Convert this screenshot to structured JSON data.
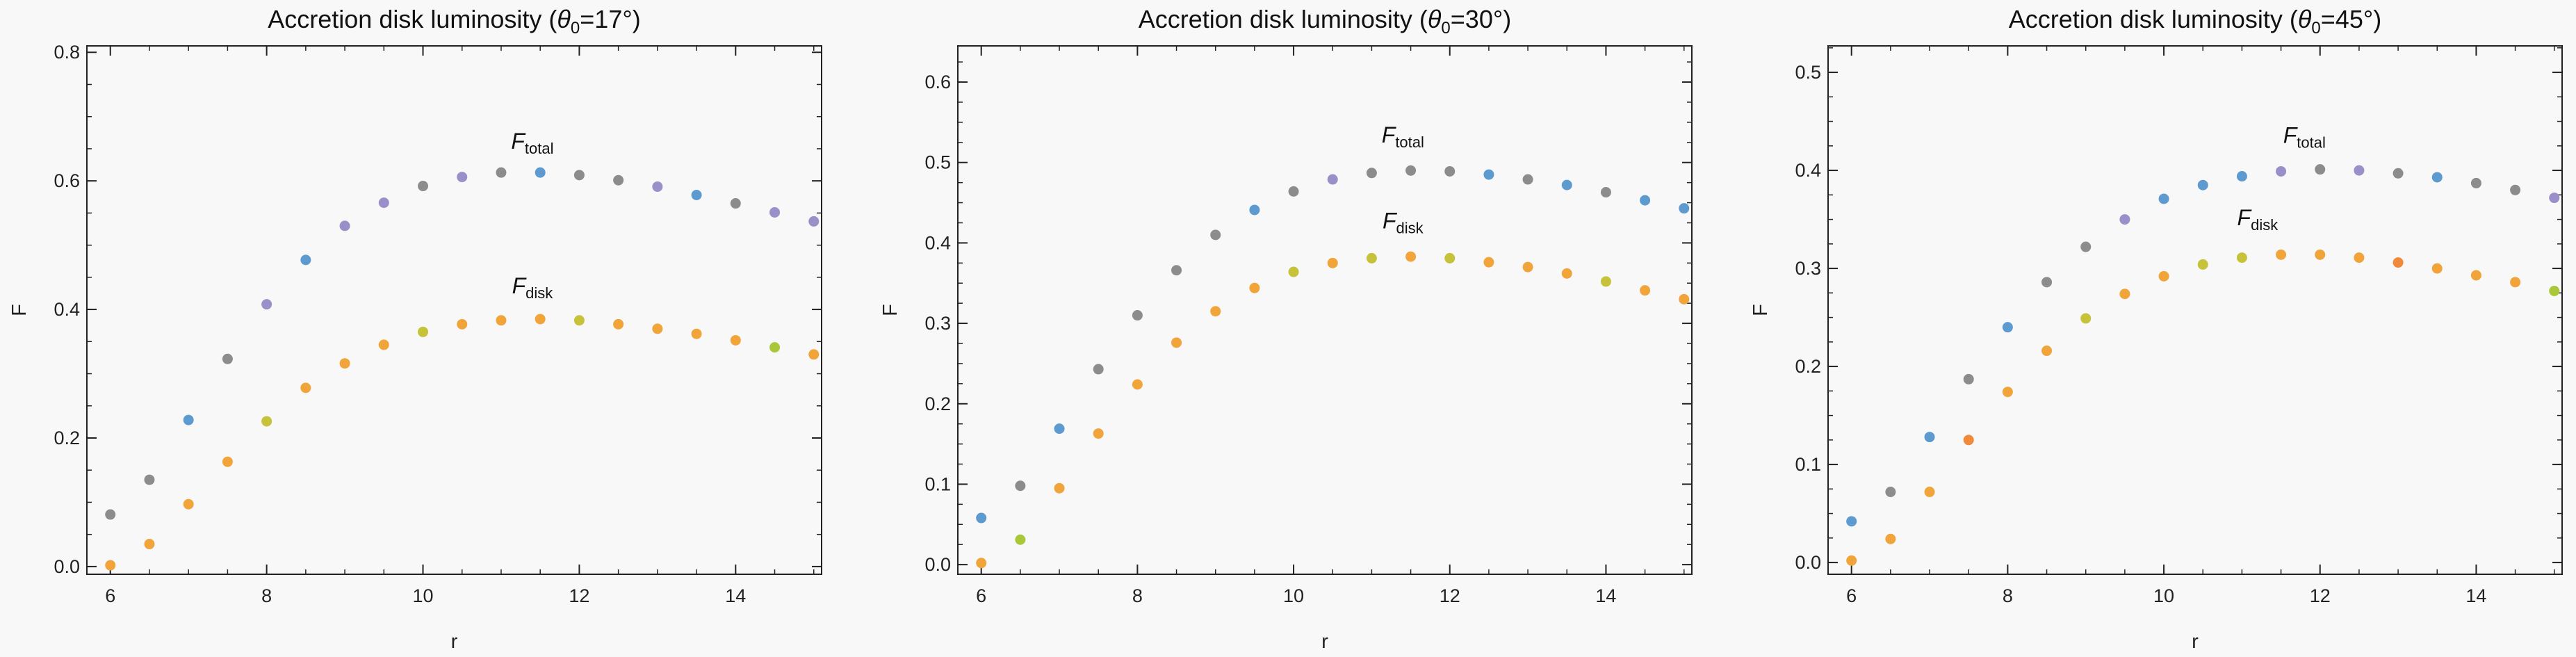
{
  "figure": {
    "background": "#f8f8f8",
    "axis_color": "#222222"
  },
  "chart_data": [
    {
      "type": "scatter",
      "title_prefix": "Accretion disk luminosity  (",
      "title_theta": "θ",
      "title_sub": "0",
      "title_suffix": "=17°)",
      "xlabel": "r",
      "ylabel": "F",
      "xlim": [
        5.7,
        15.1
      ],
      "ylim": [
        -0.012,
        0.81
      ],
      "xticks": [
        6,
        8,
        10,
        12,
        14
      ],
      "xtick_labels": [
        "6",
        "8",
        "10",
        "12",
        "14"
      ],
      "yticks": [
        0.0,
        0.2,
        0.4,
        0.6,
        0.8
      ],
      "ytick_labels": [
        "0.0",
        "0.2",
        "0.4",
        "0.6",
        "0.8"
      ],
      "minor_x_step": 0.5,
      "minor_y_step": 0.05,
      "grid": false,
      "annotations": [
        {
          "main": "F",
          "sub": "total",
          "x": 11.4,
          "y": 0.65
        },
        {
          "main": "F",
          "sub": "disk",
          "x": 11.4,
          "y": 0.425
        }
      ],
      "series": [
        {
          "x": [
            6,
            6.5,
            7,
            7.5,
            8,
            8.5,
            9,
            9.5,
            10,
            10.5,
            11,
            11.5,
            12,
            12.5,
            13,
            13.5,
            14,
            14.5,
            15
          ],
          "values": [
            0.081,
            0.135,
            0.228,
            0.323,
            0.408,
            0.477,
            0.53,
            0.566,
            0.592,
            0.606,
            0.613,
            0.613,
            0.609,
            0.601,
            0.591,
            0.578,
            0.565,
            0.551,
            0.537
          ],
          "colors": [
            "#8c8c8c",
            "#8c8c8c",
            "#5d9ad0",
            "#8c8c8c",
            "#9a8fc8",
            "#5d9ad0",
            "#9a8fc8",
            "#9a8fc8",
            "#8c8c8c",
            "#9a8fc8",
            "#8c8c8c",
            "#5d9ad0",
            "#8c8c8c",
            "#8c8c8c",
            "#9a8fc8",
            "#5d9ad0",
            "#8c8c8c",
            "#9a8fc8",
            "#9a8fc8"
          ]
        },
        {
          "x": [
            6,
            6.5,
            7,
            7.5,
            8,
            8.5,
            9,
            9.5,
            10,
            10.5,
            11,
            11.5,
            12,
            12.5,
            13,
            13.5,
            14,
            14.5,
            15
          ],
          "values": [
            0.002,
            0.035,
            0.097,
            0.163,
            0.226,
            0.278,
            0.316,
            0.345,
            0.365,
            0.377,
            0.383,
            0.385,
            0.383,
            0.377,
            0.37,
            0.362,
            0.352,
            0.341,
            0.33
          ],
          "colors": [
            "#f0a43a",
            "#f0a43a",
            "#f0a43a",
            "#f0a43a",
            "#c6c23a",
            "#f0a43a",
            "#f0a43a",
            "#f0a43a",
            "#c6c23a",
            "#f0a43a",
            "#f0a43a",
            "#f0a43a",
            "#c6c23a",
            "#f0a43a",
            "#f0a43a",
            "#f0a43a",
            "#f0a43a",
            "#a8c83a",
            "#f0a43a"
          ]
        }
      ]
    },
    {
      "type": "scatter",
      "title_prefix": "Accretion disk luminosity  (",
      "title_theta": "θ",
      "title_sub": "0",
      "title_suffix": "=30°)",
      "xlabel": "r",
      "ylabel": "F",
      "xlim": [
        5.7,
        15.1
      ],
      "ylim": [
        -0.012,
        0.645
      ],
      "xticks": [
        6,
        8,
        10,
        12,
        14
      ],
      "xtick_labels": [
        "6",
        "8",
        "10",
        "12",
        "14"
      ],
      "yticks": [
        0.0,
        0.1,
        0.2,
        0.3,
        0.4,
        0.5,
        0.6
      ],
      "ytick_labels": [
        "0.0",
        "0.1",
        "0.2",
        "0.3",
        "0.4",
        "0.5",
        "0.6"
      ],
      "minor_x_step": 0.5,
      "minor_y_step": 0.025,
      "grid": false,
      "annotations": [
        {
          "main": "F",
          "sub": "total",
          "x": 11.4,
          "y": 0.525
        },
        {
          "main": "F",
          "sub": "disk",
          "x": 11.4,
          "y": 0.418
        }
      ],
      "series": [
        {
          "x": [
            6,
            6.5,
            7,
            7.5,
            8,
            8.5,
            9,
            9.5,
            10,
            10.5,
            11,
            11.5,
            12,
            12.5,
            13,
            13.5,
            14,
            14.5,
            15
          ],
          "values": [
            0.058,
            0.098,
            0.169,
            0.243,
            0.31,
            0.366,
            0.41,
            0.441,
            0.464,
            0.479,
            0.487,
            0.49,
            0.489,
            0.485,
            0.479,
            0.472,
            0.463,
            0.453,
            0.443
          ],
          "colors": [
            "#5d9ad0",
            "#8c8c8c",
            "#5d9ad0",
            "#8c8c8c",
            "#8c8c8c",
            "#8c8c8c",
            "#8c8c8c",
            "#5d9ad0",
            "#8c8c8c",
            "#9a8fc8",
            "#8c8c8c",
            "#8c8c8c",
            "#8c8c8c",
            "#5d9ad0",
            "#8c8c8c",
            "#5d9ad0",
            "#8c8c8c",
            "#5d9ad0",
            "#5d9ad0"
          ]
        },
        {
          "x": [
            6,
            6.5,
            7,
            7.5,
            8,
            8.5,
            9,
            9.5,
            10,
            10.5,
            11,
            11.5,
            12,
            12.5,
            13,
            13.5,
            14,
            14.5,
            15
          ],
          "values": [
            0.002,
            0.031,
            0.095,
            0.163,
            0.224,
            0.276,
            0.315,
            0.344,
            0.364,
            0.375,
            0.381,
            0.383,
            0.381,
            0.376,
            0.37,
            0.362,
            0.352,
            0.341,
            0.33
          ],
          "colors": [
            "#f0a43a",
            "#a8c83a",
            "#f0a43a",
            "#f0a43a",
            "#f0a43a",
            "#f0a43a",
            "#f0a43a",
            "#f0a43a",
            "#c6c23a",
            "#f0a43a",
            "#c6c23a",
            "#f0a43a",
            "#c6c23a",
            "#f0a43a",
            "#f0a43a",
            "#f0a43a",
            "#c6c23a",
            "#f0a43a",
            "#f0a43a"
          ]
        }
      ]
    },
    {
      "type": "scatter",
      "title_prefix": "Accretion disk luminosity  (",
      "title_theta": "θ",
      "title_sub": "0",
      "title_suffix": "=45°)",
      "xlabel": "r",
      "ylabel": "F",
      "xlim": [
        5.7,
        15.1
      ],
      "ylim": [
        -0.012,
        0.527
      ],
      "xticks": [
        6,
        8,
        10,
        12,
        14
      ],
      "xtick_labels": [
        "6",
        "8",
        "10",
        "12",
        "14"
      ],
      "yticks": [
        0.0,
        0.1,
        0.2,
        0.3,
        0.4,
        0.5
      ],
      "ytick_labels": [
        "0.0",
        "0.1",
        "0.2",
        "0.3",
        "0.4",
        "0.5"
      ],
      "minor_x_step": 0.5,
      "minor_y_step": 0.025,
      "grid": false,
      "annotations": [
        {
          "main": "F",
          "sub": "total",
          "x": 11.8,
          "y": 0.428
        },
        {
          "main": "F",
          "sub": "disk",
          "x": 11.2,
          "y": 0.344
        }
      ],
      "series": [
        {
          "x": [
            6,
            6.5,
            7,
            7.5,
            8,
            8.5,
            9,
            9.5,
            10,
            10.5,
            11,
            11.5,
            12,
            12.5,
            13,
            13.5,
            14,
            14.5,
            15
          ],
          "values": [
            0.042,
            0.072,
            0.128,
            0.187,
            0.24,
            0.286,
            0.322,
            0.35,
            0.371,
            0.385,
            0.394,
            0.399,
            0.401,
            0.4,
            0.397,
            0.393,
            0.387,
            0.38,
            0.372
          ],
          "colors": [
            "#5d9ad0",
            "#8c8c8c",
            "#5d9ad0",
            "#8c8c8c",
            "#5d9ad0",
            "#8c8c8c",
            "#8c8c8c",
            "#9a8fc8",
            "#5d9ad0",
            "#5d9ad0",
            "#5d9ad0",
            "#9a8fc8",
            "#8c8c8c",
            "#9a8fc8",
            "#8c8c8c",
            "#5d9ad0",
            "#8c8c8c",
            "#8c8c8c",
            "#9a8fc8"
          ]
        },
        {
          "x": [
            6,
            6.5,
            7,
            7.5,
            8,
            8.5,
            9,
            9.5,
            10,
            10.5,
            11,
            11.5,
            12,
            12.5,
            13,
            13.5,
            14,
            14.5,
            15
          ],
          "values": [
            0.002,
            0.024,
            0.072,
            0.125,
            0.174,
            0.216,
            0.249,
            0.274,
            0.292,
            0.304,
            0.311,
            0.314,
            0.314,
            0.311,
            0.306,
            0.3,
            0.293,
            0.286,
            0.277
          ],
          "colors": [
            "#f0a43a",
            "#f0a43a",
            "#f0a43a",
            "#f08a3a",
            "#f0a43a",
            "#f0a43a",
            "#c6c23a",
            "#f0a43a",
            "#f0a43a",
            "#c6c23a",
            "#c6c23a",
            "#f0a43a",
            "#f0a43a",
            "#f0a43a",
            "#f08a3a",
            "#f0a43a",
            "#f0a43a",
            "#f0a43a",
            "#a8c83a"
          ]
        }
      ]
    }
  ]
}
